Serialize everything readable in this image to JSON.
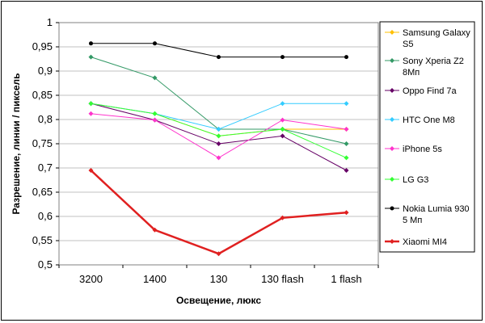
{
  "chart_data": {
    "type": "line",
    "title": "",
    "xlabel": "Освещение, люкс",
    "ylabel": "Разрешение, линии / пиксель",
    "categories": [
      "3200",
      "1400",
      "130",
      "130 flash",
      "1 flash"
    ],
    "ylim": [
      0.5,
      1.0
    ],
    "ytick_labels": [
      "0,5",
      "0,55",
      "0,6",
      "0,65",
      "0,7",
      "0,75",
      "0,8",
      "0,85",
      "0,9",
      "0,95",
      "1"
    ],
    "grid": true,
    "legend_position": "right",
    "series": [
      {
        "name": "Samsung Galaxy S5",
        "name_lines": [
          "Samsung Galaxy",
          "S5"
        ],
        "color": "#ffc000",
        "marker": "diamond",
        "width": 1,
        "values": [
          0.833,
          0.812,
          0.766,
          0.78,
          0.78
        ]
      },
      {
        "name": "Sony Xperia Z2 8Мп",
        "name_lines": [
          "Sony Xperia Z2",
          "8Мп"
        ],
        "color": "#339966",
        "marker": "diamond",
        "width": 1,
        "values": [
          0.929,
          0.886,
          0.78,
          0.78,
          0.75
        ]
      },
      {
        "name": "Oppo Find 7a",
        "name_lines": [
          "Oppo Find 7a"
        ],
        "color": "#660066",
        "marker": "diamond",
        "width": 1,
        "values": [
          0.833,
          0.799,
          0.75,
          0.766,
          0.695
        ]
      },
      {
        "name": "HTC One M8",
        "name_lines": [
          "HTC One M8"
        ],
        "color": "#33ccff",
        "marker": "diamond",
        "width": 1,
        "values": [
          0.833,
          0.812,
          0.78,
          0.833,
          0.833
        ]
      },
      {
        "name": "iPhone 5s",
        "name_lines": [
          "iPhone 5s"
        ],
        "color": "#ff33cc",
        "marker": "diamond",
        "width": 1,
        "values": [
          0.812,
          0.799,
          0.721,
          0.799,
          0.78
        ]
      },
      {
        "name": "LG G3",
        "name_lines": [
          "LG G3"
        ],
        "color": "#33ff33",
        "marker": "diamond",
        "width": 1,
        "values": [
          0.833,
          0.812,
          0.766,
          0.78,
          0.721
        ]
      },
      {
        "name": "Nokia Lumia 930 5 Мп",
        "name_lines": [
          "Nokia Lumia 930",
          "5 Мп"
        ],
        "color": "#000000",
        "marker": "circle",
        "width": 1,
        "values": [
          0.957,
          0.957,
          0.929,
          0.929,
          0.929
        ]
      },
      {
        "name": "Xiaomi MI4",
        "name_lines": [
          "Xiaomi MI4"
        ],
        "color": "#e02020",
        "marker": "diamond",
        "width": 2.5,
        "values": [
          0.695,
          0.572,
          0.523,
          0.597,
          0.608
        ]
      }
    ]
  }
}
